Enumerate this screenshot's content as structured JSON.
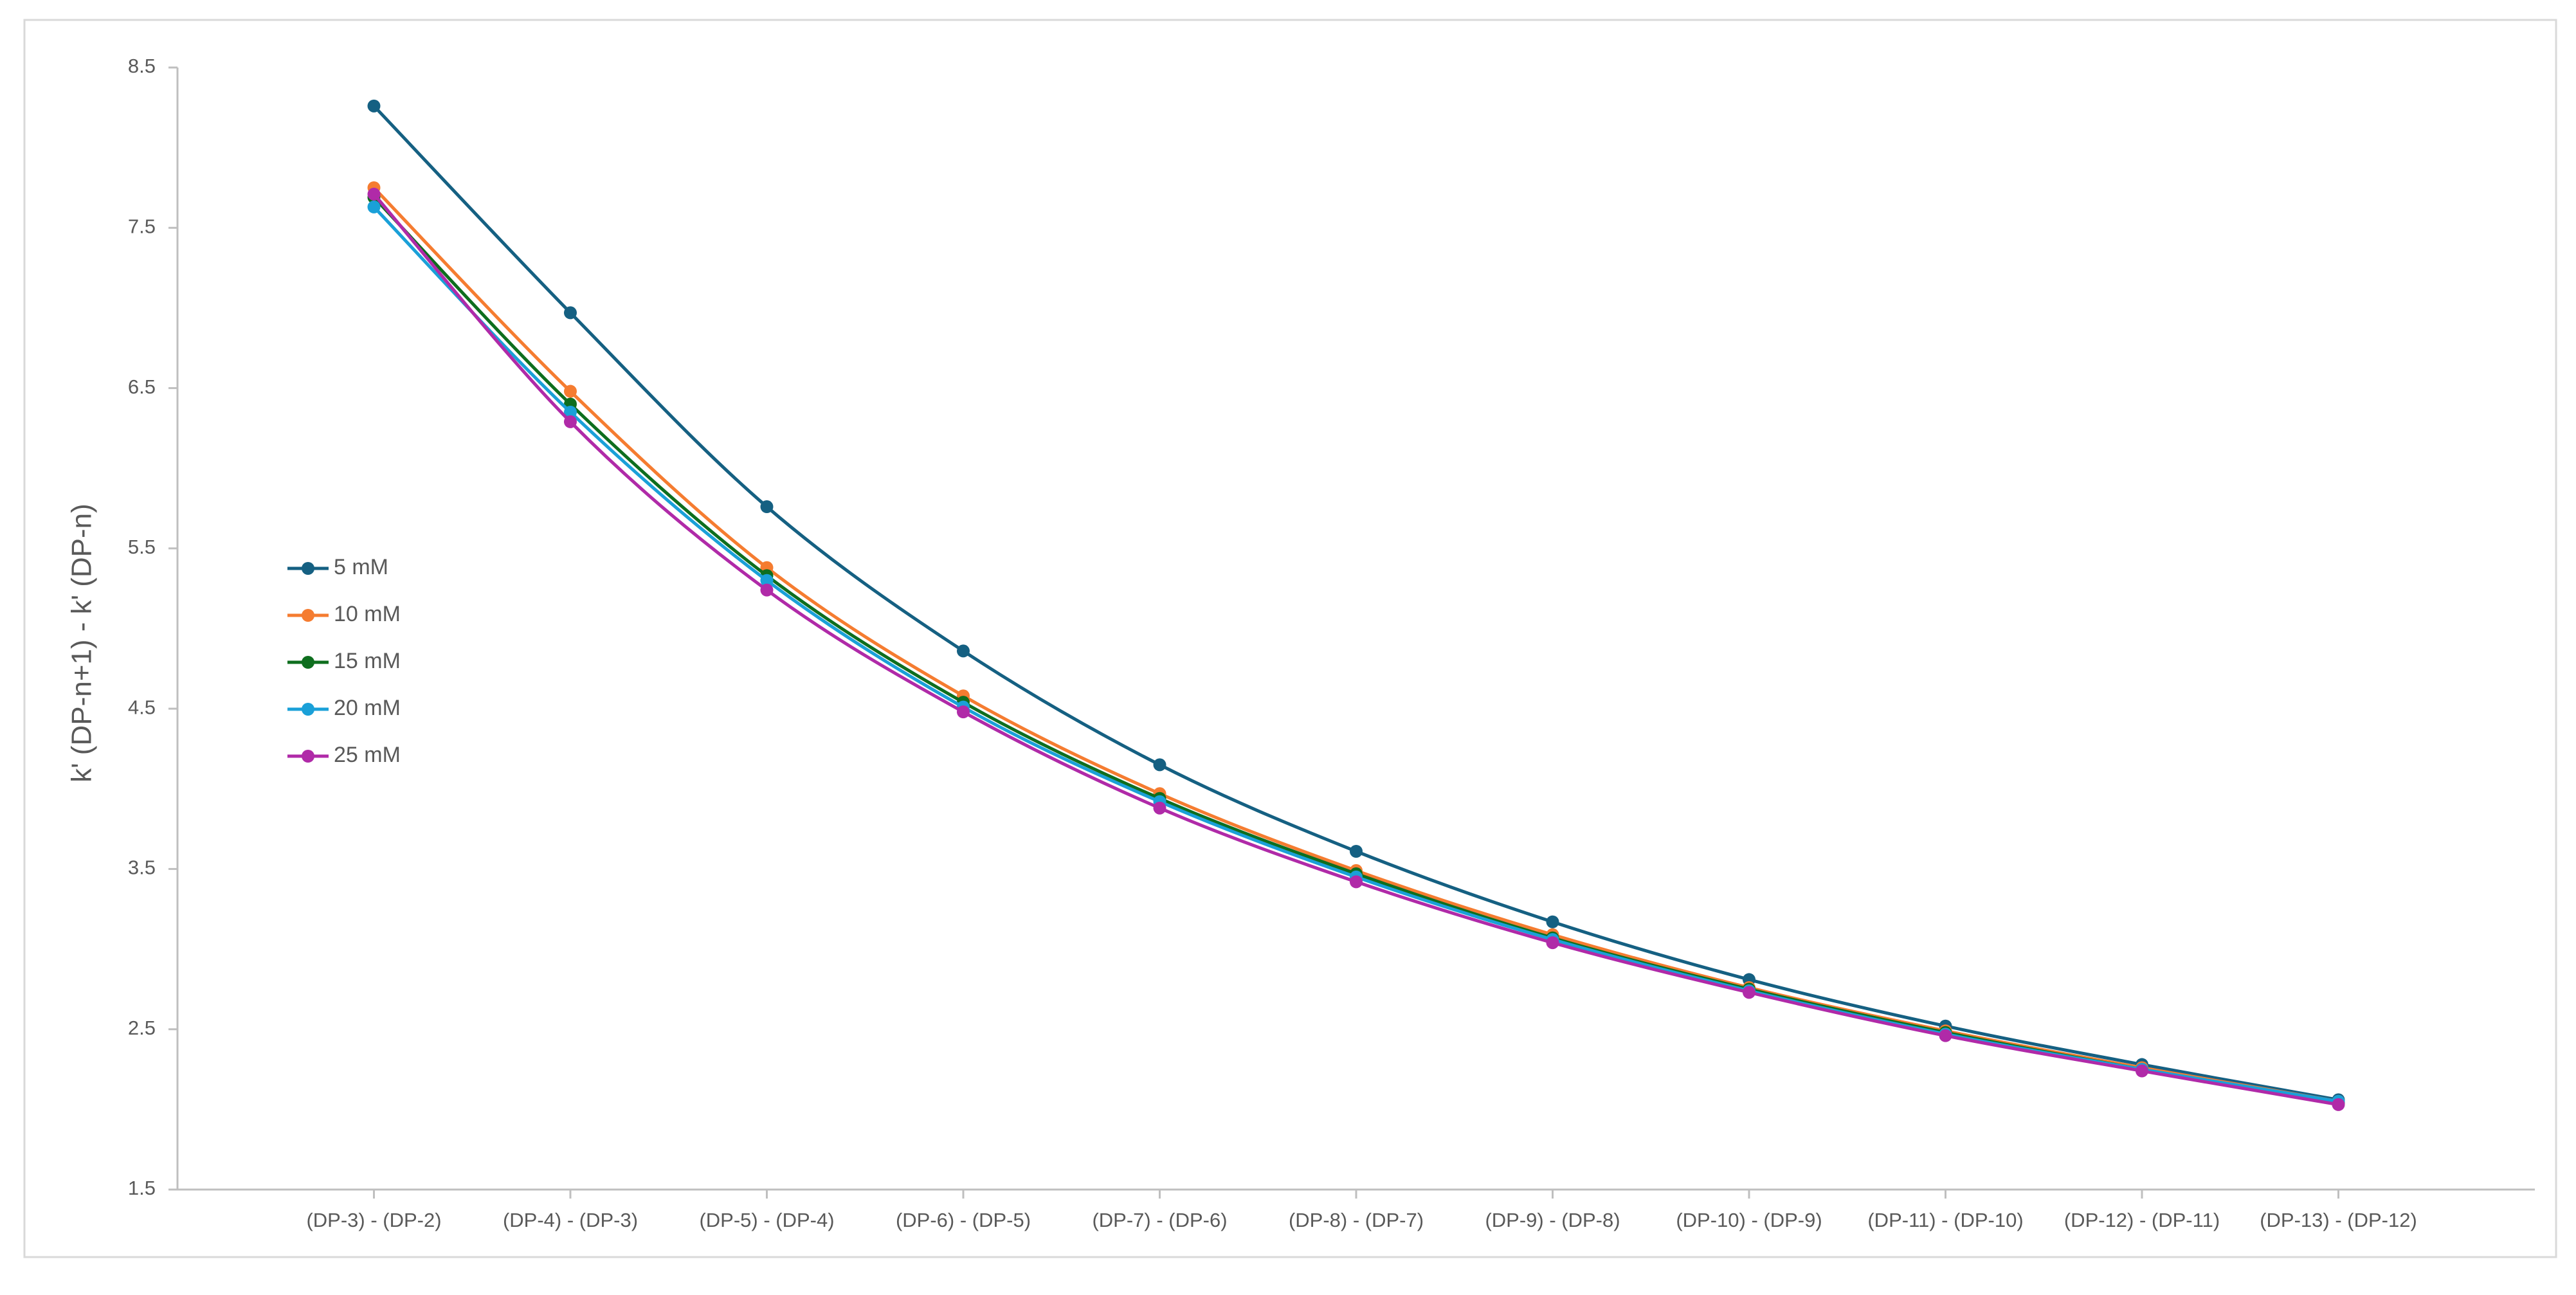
{
  "chart_data": {
    "type": "line",
    "smooth": true,
    "y_label": "k' (DP-n+1) - k' (DP-n)",
    "categories": [
      "(DP-3) - (DP-2)",
      "(DP-4) - (DP-3)",
      "(DP-5) - (DP-4)",
      "(DP-6) - (DP-5)",
      "(DP-7) - (DP-6)",
      "(DP-8) - (DP-7)",
      "(DP-9) - (DP-8)",
      "(DP-10) - (DP-9)",
      "(DP-11) - (DP-10)",
      "(DP-12) - (DP-11)",
      "(DP-13) - (DP-12)"
    ],
    "series": [
      {
        "name": "5 mM",
        "color": "#156082",
        "values": [
          8.26,
          6.97,
          5.76,
          4.86,
          4.15,
          3.61,
          3.17,
          2.81,
          2.52,
          2.28,
          2.06
        ]
      },
      {
        "name": "10 mM",
        "color": "#f57c30",
        "values": [
          7.75,
          6.48,
          5.38,
          4.58,
          3.97,
          3.49,
          3.09,
          2.76,
          2.49,
          2.26,
          2.05
        ]
      },
      {
        "name": "15 mM",
        "color": "#0e6e1e",
        "values": [
          7.69,
          6.4,
          5.33,
          4.54,
          3.94,
          3.47,
          3.07,
          2.75,
          2.48,
          2.25,
          2.04
        ]
      },
      {
        "name": "20 mM",
        "color": "#1aa0d8",
        "values": [
          7.63,
          6.35,
          5.3,
          4.51,
          3.92,
          3.45,
          3.06,
          2.74,
          2.47,
          2.25,
          2.05
        ]
      },
      {
        "name": "25 mM",
        "color": "#b02aa8",
        "values": [
          7.71,
          6.29,
          5.24,
          4.48,
          3.88,
          3.42,
          3.04,
          2.73,
          2.46,
          2.24,
          2.03
        ]
      }
    ],
    "ylim": [
      1.5,
      8.5
    ],
    "yticks": [
      1.5,
      2.5,
      3.5,
      4.5,
      5.5,
      6.5,
      7.5,
      8.5
    ],
    "grid": false,
    "legend": "left"
  }
}
